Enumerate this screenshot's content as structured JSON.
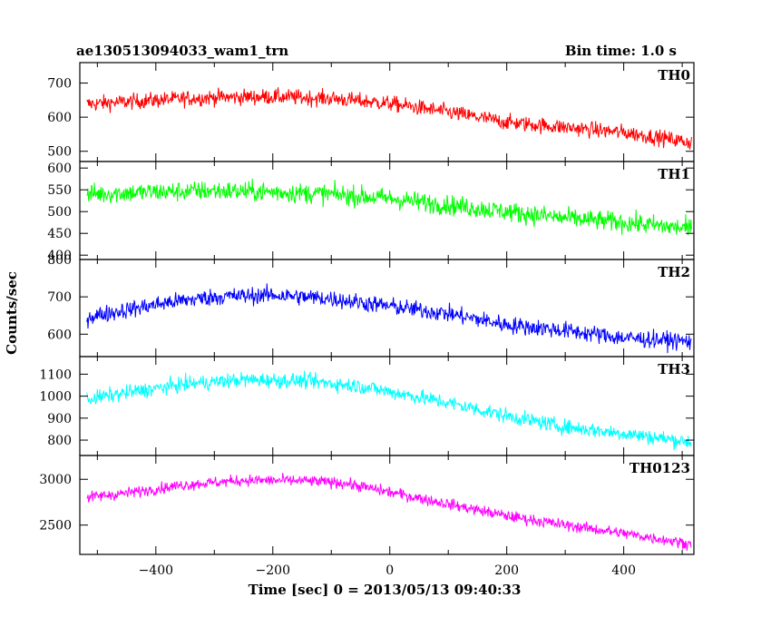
{
  "header": {
    "title": "ae130513094033_wam1_trn",
    "bin_time": "Bin time: 1.0 s"
  },
  "chart_data": {
    "type": "line",
    "xlabel": "Time [sec] 0 = 2013/05/13 09:40:33",
    "ylabel": "Counts/sec",
    "xlim": [
      -530,
      520
    ],
    "x_ticks": [
      -400,
      -200,
      0,
      200,
      400
    ],
    "x_tick_labels": [
      "−400",
      "−200",
      "0",
      "200",
      "400"
    ],
    "panels": [
      {
        "name": "TH0",
        "color": "#ff0000",
        "ylim": [
          470,
          760
        ],
        "y_ticks": [
          500,
          600,
          700
        ],
        "trend_x": [
          -520,
          -450,
          -380,
          -300,
          -200,
          -100,
          0,
          100,
          150,
          200,
          300,
          400,
          520
        ],
        "trend_y": [
          638,
          645,
          652,
          658,
          660,
          655,
          640,
          615,
          600,
          585,
          570,
          555,
          525
        ],
        "noise": 30
      },
      {
        "name": "TH1",
        "color": "#00ff00",
        "ylim": [
          390,
          615
        ],
        "y_ticks": [
          400,
          450,
          500,
          550,
          600
        ],
        "trend_x": [
          -520,
          -400,
          -300,
          -200,
          -100,
          0,
          100,
          200,
          300,
          400,
          520
        ],
        "trend_y": [
          540,
          545,
          548,
          545,
          540,
          530,
          515,
          500,
          485,
          475,
          460
        ],
        "noise": 30
      },
      {
        "name": "TH2",
        "color": "#0000ff",
        "ylim": [
          540,
          800
        ],
        "y_ticks": [
          600,
          700,
          800
        ],
        "trend_x": [
          -520,
          -450,
          -380,
          -300,
          -200,
          -100,
          0,
          100,
          150,
          200,
          300,
          400,
          520
        ],
        "trend_y": [
          645,
          665,
          685,
          700,
          705,
          695,
          675,
          655,
          640,
          625,
          610,
          590,
          580
        ],
        "noise": 30
      },
      {
        "name": "TH3",
        "color": "#00ffff",
        "ylim": [
          730,
          1180
        ],
        "y_ticks": [
          800,
          900,
          1000,
          1100
        ],
        "trend_x": [
          -520,
          -450,
          -350,
          -250,
          -150,
          -50,
          0,
          100,
          200,
          300,
          400,
          520
        ],
        "trend_y": [
          985,
          1015,
          1055,
          1075,
          1070,
          1045,
          1020,
          970,
          910,
          860,
          830,
          790
        ],
        "noise": 45
      },
      {
        "name": "TH0123",
        "color": "#ff00ff",
        "ylim": [
          2180,
          3260
        ],
        "y_ticks": [
          2500,
          3000
        ],
        "trend_x": [
          -520,
          -450,
          -350,
          -250,
          -150,
          -80,
          0,
          100,
          200,
          300,
          400,
          520
        ],
        "trend_y": [
          2800,
          2850,
          2940,
          2990,
          2985,
          2960,
          2860,
          2730,
          2600,
          2500,
          2410,
          2290
        ],
        "noise": 80
      }
    ]
  }
}
